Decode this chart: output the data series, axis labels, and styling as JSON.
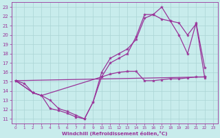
{
  "xlabel": "Windchill (Refroidissement éolien,°C)",
  "xlim": [
    -0.5,
    23.5
  ],
  "ylim": [
    10.5,
    23.5
  ],
  "yticks": [
    11,
    12,
    13,
    14,
    15,
    16,
    17,
    18,
    19,
    20,
    21,
    22,
    23
  ],
  "xticks": [
    0,
    1,
    2,
    3,
    4,
    5,
    6,
    7,
    8,
    9,
    10,
    11,
    12,
    13,
    14,
    15,
    16,
    17,
    18,
    19,
    20,
    21,
    22,
    23
  ],
  "bg_color": "#c8ecec",
  "grid_color": "#aad4d4",
  "line_color": "#993399",
  "lines": [
    {
      "x": [
        0,
        1,
        2,
        3,
        4,
        5,
        6,
        7,
        8,
        9,
        10,
        11,
        12,
        13,
        14,
        15,
        16,
        17,
        18,
        19,
        20,
        21,
        22
      ],
      "y": [
        15.1,
        14.8,
        13.8,
        13.5,
        12.1,
        11.9,
        11.6,
        11.2,
        11.0,
        12.8,
        15.5,
        15.8,
        16.0,
        16.1,
        16.1,
        15.1,
        15.1,
        15.2,
        15.3,
        15.3,
        15.4,
        15.5,
        15.5
      ]
    },
    {
      "x": [
        0,
        2,
        3,
        4,
        5,
        6,
        7,
        8,
        9,
        10,
        11,
        12,
        13,
        14,
        15,
        16,
        17,
        18,
        19,
        20,
        21,
        22
      ],
      "y": [
        15.1,
        13.8,
        13.5,
        13.0,
        12.1,
        11.8,
        11.4,
        11.0,
        12.8,
        16.0,
        17.5,
        18.0,
        18.5,
        19.5,
        21.8,
        22.2,
        21.7,
        21.5,
        20.0,
        18.0,
        21.3,
        16.5
      ]
    },
    {
      "x": [
        0,
        2,
        3,
        10,
        11,
        12,
        13,
        14,
        15,
        16,
        17,
        18,
        19,
        20,
        21,
        22
      ],
      "y": [
        15.1,
        13.8,
        13.5,
        15.5,
        17.0,
        17.5,
        18.0,
        19.8,
        22.2,
        22.2,
        23.0,
        21.5,
        21.3,
        20.0,
        21.2,
        15.4
      ]
    },
    {
      "x": [
        0,
        22
      ],
      "y": [
        15.1,
        15.5
      ]
    }
  ]
}
